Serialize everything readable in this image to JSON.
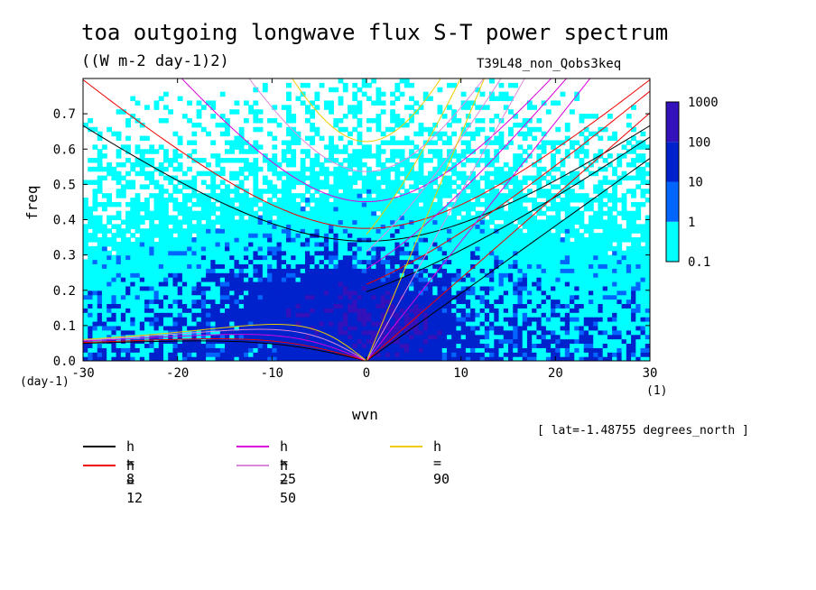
{
  "title": "toa outgoing longwave flux S-T power spectrum",
  "subtitle": "((W m-2 day-1)2)",
  "run_label": "T39L48_non_Qobs3keq",
  "footnote": "[ lat=-1.48755 degrees_north ]",
  "chart_data": {
    "type": "heatmap",
    "xlabel": "wvn",
    "ylabel": "freq",
    "x_unit": "(1)",
    "y_unit": "(day-1)",
    "xlim": [
      -30,
      30
    ],
    "ylim": [
      0.0,
      0.8
    ],
    "x_ticks": [
      "-30",
      "-20",
      "-10",
      "0",
      "10",
      "20",
      "30"
    ],
    "y_ticks": [
      "0.0",
      "0.1",
      "0.2",
      "0.3",
      "0.4",
      "0.5",
      "0.6",
      "0.7"
    ],
    "colorbar": {
      "levels": [
        "0.1",
        "1",
        "10",
        "100",
        "1000"
      ],
      "colors": [
        "#00ffff",
        "#0066ff",
        "#0022cc",
        "#3311bb"
      ]
    },
    "dispersion_curves": [
      {
        "name": "h =  8",
        "h": 8,
        "color": "#000000"
      },
      {
        "name": "h = 12",
        "h": 12,
        "color": "#ee0000"
      },
      {
        "name": "h = 25",
        "h": 25,
        "color": "#dd00dd"
      },
      {
        "name": "h = 50",
        "h": 50,
        "color": "#dd88dd"
      },
      {
        "name": "h = 90",
        "h": 90,
        "color": "#eecc00"
      }
    ]
  }
}
